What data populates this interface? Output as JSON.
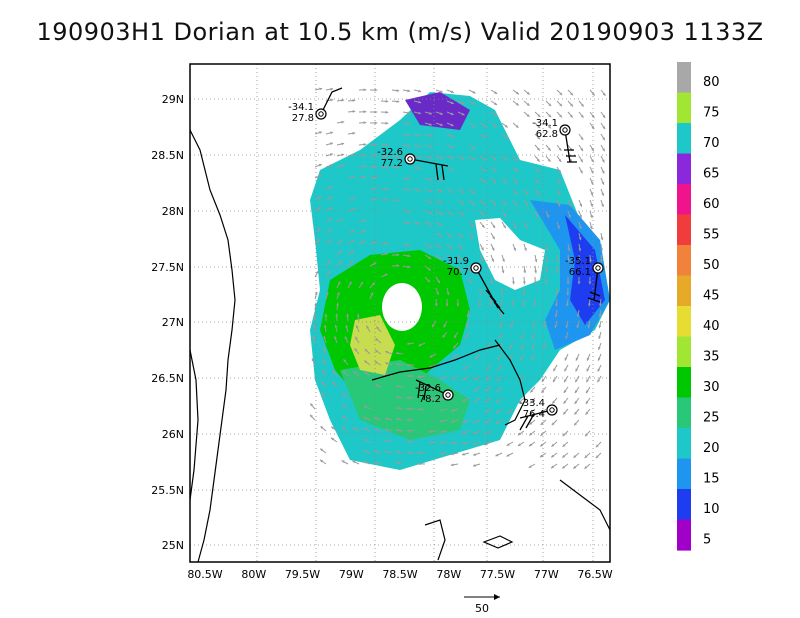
{
  "title": "190903H1 Dorian at 10.5 km (m/s) Valid 20190903 1133Z",
  "lon_ticks": [
    "80.5W",
    "80W",
    "79.5W",
    "79W",
    "78.5W",
    "78W",
    "77.5W",
    "77W",
    "76.5W"
  ],
  "lat_ticks": [
    "29N",
    "28.5N",
    "28N",
    "27.5N",
    "27N",
    "26.5N",
    "26N",
    "25.5N",
    "25N"
  ],
  "colorbar": {
    "labels": [
      "80",
      "75",
      "70",
      "65",
      "60",
      "55",
      "50",
      "45",
      "40",
      "35",
      "30",
      "25",
      "20",
      "15",
      "10",
      "5"
    ],
    "colors": [
      "#a8a8a8",
      "#a0e632",
      "#1ec8c8",
      "#8c28dc",
      "#f0148c",
      "#f03c3c",
      "#f0823c",
      "#e6aa28",
      "#e6dc32",
      "#a0e632",
      "#00c800",
      "#28c878",
      "#1ec8c8",
      "#1e96f0",
      "#1e3cf0",
      "#a000c8"
    ]
  },
  "scale_arrow_label": "50",
  "observations": [
    {
      "id": "o1",
      "top": "-34.1",
      "bottom": "27.8"
    },
    {
      "id": "o2",
      "top": "-34.1",
      "bottom": "62.8"
    },
    {
      "id": "o3",
      "top": "-32.6",
      "bottom": "77.2"
    },
    {
      "id": "o4",
      "top": "-31.9",
      "bottom": "70.7"
    },
    {
      "id": "o5",
      "top": "-35.1",
      "bottom": "66.1"
    },
    {
      "id": "o6",
      "top": "-32.6",
      "bottom": "78.2"
    },
    {
      "id": "o7",
      "top": "-33.4",
      "bottom": "76.4"
    }
  ]
}
